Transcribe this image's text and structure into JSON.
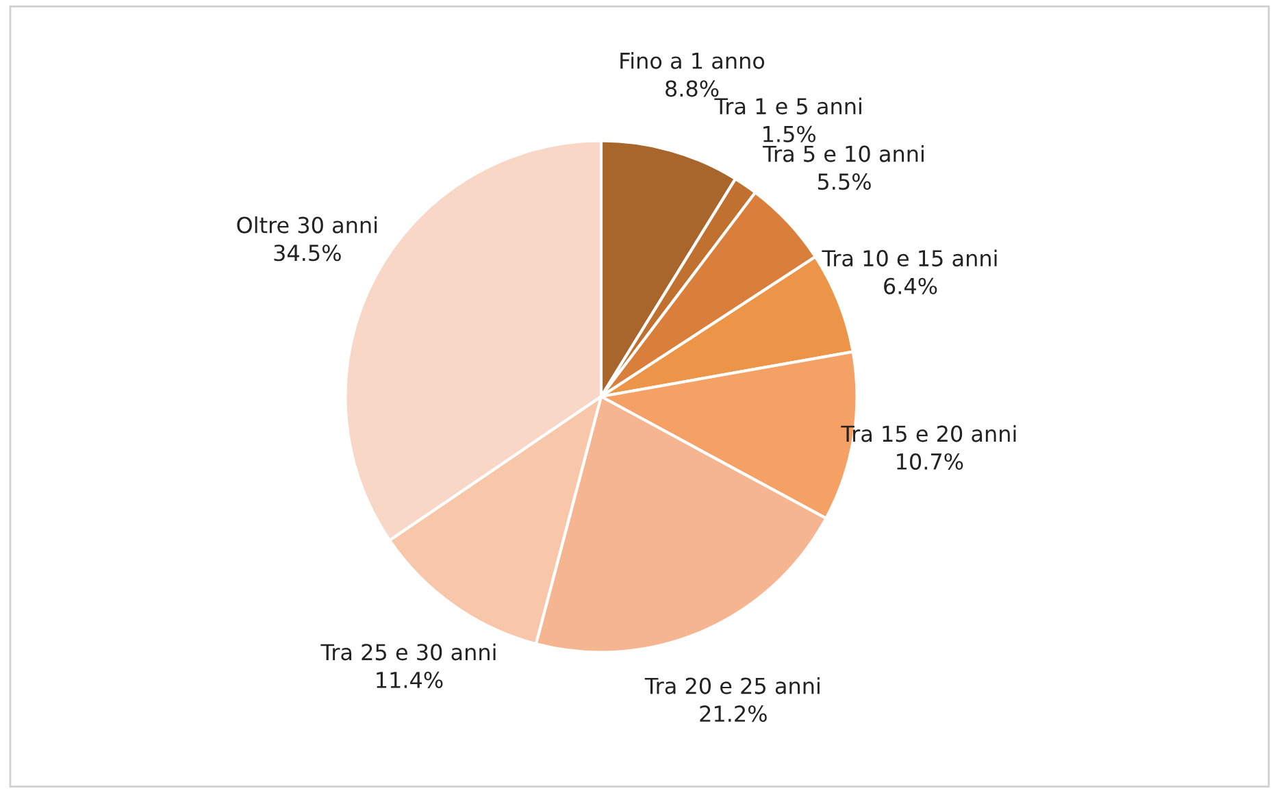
{
  "chart_data": {
    "type": "pie",
    "categories": [
      "Fino a 1 anno",
      "Tra 1 e 5 anni",
      "Tra 5 e 10 anni",
      "Tra 10 e 15 anni",
      "Tra 15 e 20 anni",
      "Tra 20 e 25 anni",
      "Tra 25 e 30 anni",
      "Oltre 30 anni"
    ],
    "values": [
      8.8,
      1.5,
      5.5,
      6.4,
      10.7,
      21.2,
      11.4,
      34.5
    ],
    "value_labels": [
      "8.8%",
      "1.5%",
      "5.5%",
      "6.4%",
      "10.7%",
      "21.2%",
      "11.4%",
      "34.5%"
    ],
    "colors": [
      "#a8652c",
      "#c0702f",
      "#d97f3b",
      "#ec9448",
      "#f5a064",
      "#f6b591",
      "#f8c7aa",
      "#f9d7c7"
    ],
    "legend": false
  }
}
